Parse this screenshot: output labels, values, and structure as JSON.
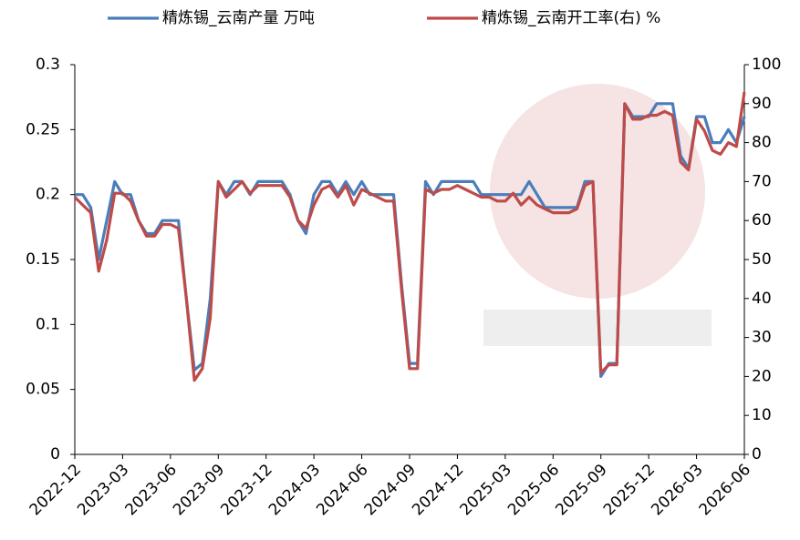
{
  "chart_data": {
    "type": "line",
    "categories": [
      "2022-12",
      null,
      null,
      null,
      null,
      null,
      "2023-03",
      null,
      null,
      null,
      null,
      null,
      "2023-06",
      null,
      null,
      null,
      null,
      null,
      "2023-09",
      null,
      null,
      null,
      null,
      null,
      "2023-12",
      null,
      null,
      null,
      null,
      null,
      "2024-03",
      null,
      null,
      null,
      null,
      null,
      "2024-06",
      null,
      null,
      null,
      null,
      null,
      "2024-09",
      null,
      null,
      null,
      null,
      null,
      "2024-12",
      null,
      null,
      null,
      null,
      null,
      "2025-03",
      null,
      null,
      null,
      null,
      null,
      "2025-06",
      null,
      null,
      null,
      null,
      null,
      "2025-09",
      null,
      null,
      null,
      null,
      null,
      "2025-12",
      null,
      null,
      null,
      null,
      null,
      "2026-03",
      null,
      null,
      null,
      null,
      null,
      "2026-06"
    ],
    "series": [
      {
        "name": "精炼锡_云南产量 万吨",
        "color": "#4a7ebb",
        "values": [
          0.2,
          0.2,
          0.19,
          0.15,
          0.18,
          0.21,
          0.2,
          0.2,
          0.18,
          0.17,
          0.17,
          0.18,
          0.18,
          0.18,
          0.12,
          0.065,
          0.07,
          0.12,
          0.21,
          0.2,
          0.21,
          0.21,
          0.2,
          0.21,
          0.21,
          0.21,
          0.21,
          0.2,
          0.18,
          0.17,
          0.2,
          0.21,
          0.21,
          0.2,
          0.21,
          0.2,
          0.21,
          0.2,
          0.2,
          0.2,
          0.2,
          0.13,
          0.07,
          0.07,
          0.21,
          0.2,
          0.21,
          0.21,
          0.21,
          0.21,
          0.21,
          0.2,
          0.2,
          0.2,
          0.2,
          0.2,
          0.2,
          0.21,
          0.2,
          0.19,
          0.19,
          0.19,
          0.19,
          0.19,
          0.21,
          0.21,
          0.06,
          0.07,
          0.07,
          0.27,
          0.26,
          0.26,
          0.26,
          0.27,
          0.27,
          0.27,
          0.23,
          0.22,
          0.26,
          0.26,
          0.24,
          0.24,
          0.25,
          0.24,
          0.26
        ]
      },
      {
        "name": "精炼锡_云南开工率(右)  %",
        "color": "#be4b48",
        "axis": "y2",
        "values": [
          66,
          64,
          62,
          47,
          55,
          67,
          67,
          65,
          60,
          56,
          56,
          59,
          59,
          58,
          40,
          19,
          22,
          35,
          70,
          66,
          68,
          70,
          67,
          69,
          69,
          69,
          69,
          66,
          60,
          58,
          64,
          68,
          69,
          66,
          69,
          64,
          68,
          67,
          66,
          65,
          65,
          42,
          22,
          22,
          68,
          67,
          68,
          68,
          69,
          68,
          67,
          66,
          66,
          65,
          65,
          67,
          64,
          66,
          64,
          63,
          62,
          62,
          62,
          63,
          69,
          70,
          21,
          23,
          23,
          90,
          86,
          86,
          87,
          87,
          88,
          87,
          75,
          73,
          86,
          83,
          78,
          77,
          80,
          79,
          93
        ]
      }
    ],
    "ylim": [
      0,
      0.3
    ],
    "yticks": [
      0,
      0.05,
      0.1,
      0.15,
      0.2,
      0.25,
      0.3
    ],
    "y2lim": [
      0,
      100
    ],
    "y2ticks": [
      0,
      10,
      20,
      30,
      40,
      50,
      60,
      70,
      80,
      90,
      100
    ]
  }
}
